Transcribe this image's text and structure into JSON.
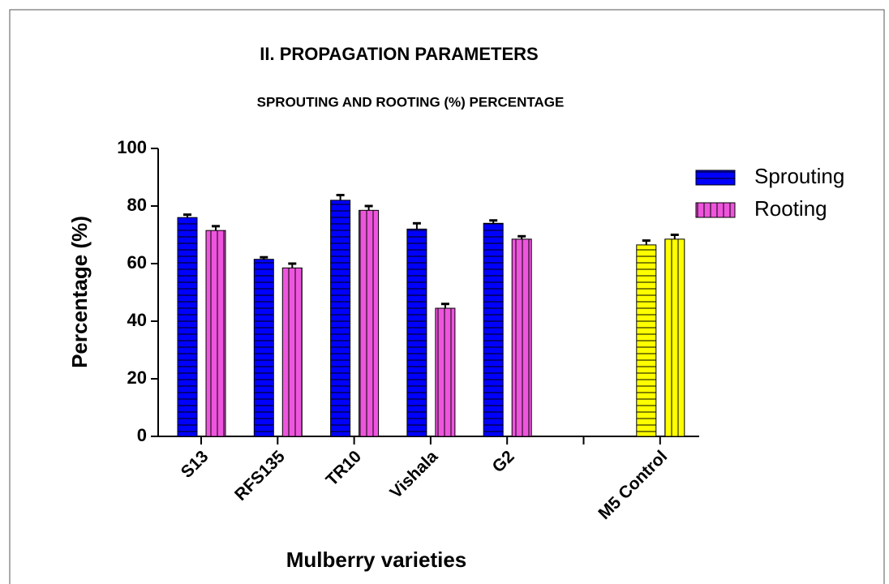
{
  "chart_data": {
    "type": "bar",
    "title": "II. PROPAGATION PARAMETERS",
    "subtitle": "SPROUTING AND ROOTING (%) PERCENTAGE",
    "x_label": "Mulberry varieties",
    "y_label": "Percentage (%)",
    "categories": [
      "S13",
      "RFS135",
      "TR10",
      "Vishala",
      "G2",
      null,
      "M5 Control"
    ],
    "series": [
      {
        "name": "Sprouting",
        "color": "#0000ff",
        "pattern": "horizontal",
        "colors": [
          "#0000ff",
          "#0000ff",
          "#0000ff",
          "#0000ff",
          "#0000ff",
          null,
          "#ffff00"
        ],
        "values": [
          76,
          61.5,
          82,
          72,
          74,
          null,
          66.5
        ],
        "errors": [
          1,
          0.7,
          1.8,
          2,
          1,
          null,
          1.5
        ]
      },
      {
        "name": "Rooting",
        "color": "#ee55dd",
        "pattern": "vertical",
        "colors": [
          "#ee55dd",
          "#ee55dd",
          "#ee55dd",
          "#ee55dd",
          "#ee55dd",
          null,
          "#ffff00"
        ],
        "values": [
          71.5,
          58.5,
          78.5,
          44.5,
          68.5,
          null,
          68.5
        ],
        "errors": [
          1.5,
          1.5,
          1.5,
          1.5,
          1,
          null,
          1.5
        ]
      }
    ],
    "ylim": [
      0,
      100
    ],
    "yticks": [
      0,
      20,
      40,
      60,
      80,
      100
    ],
    "legend": "upper right"
  }
}
